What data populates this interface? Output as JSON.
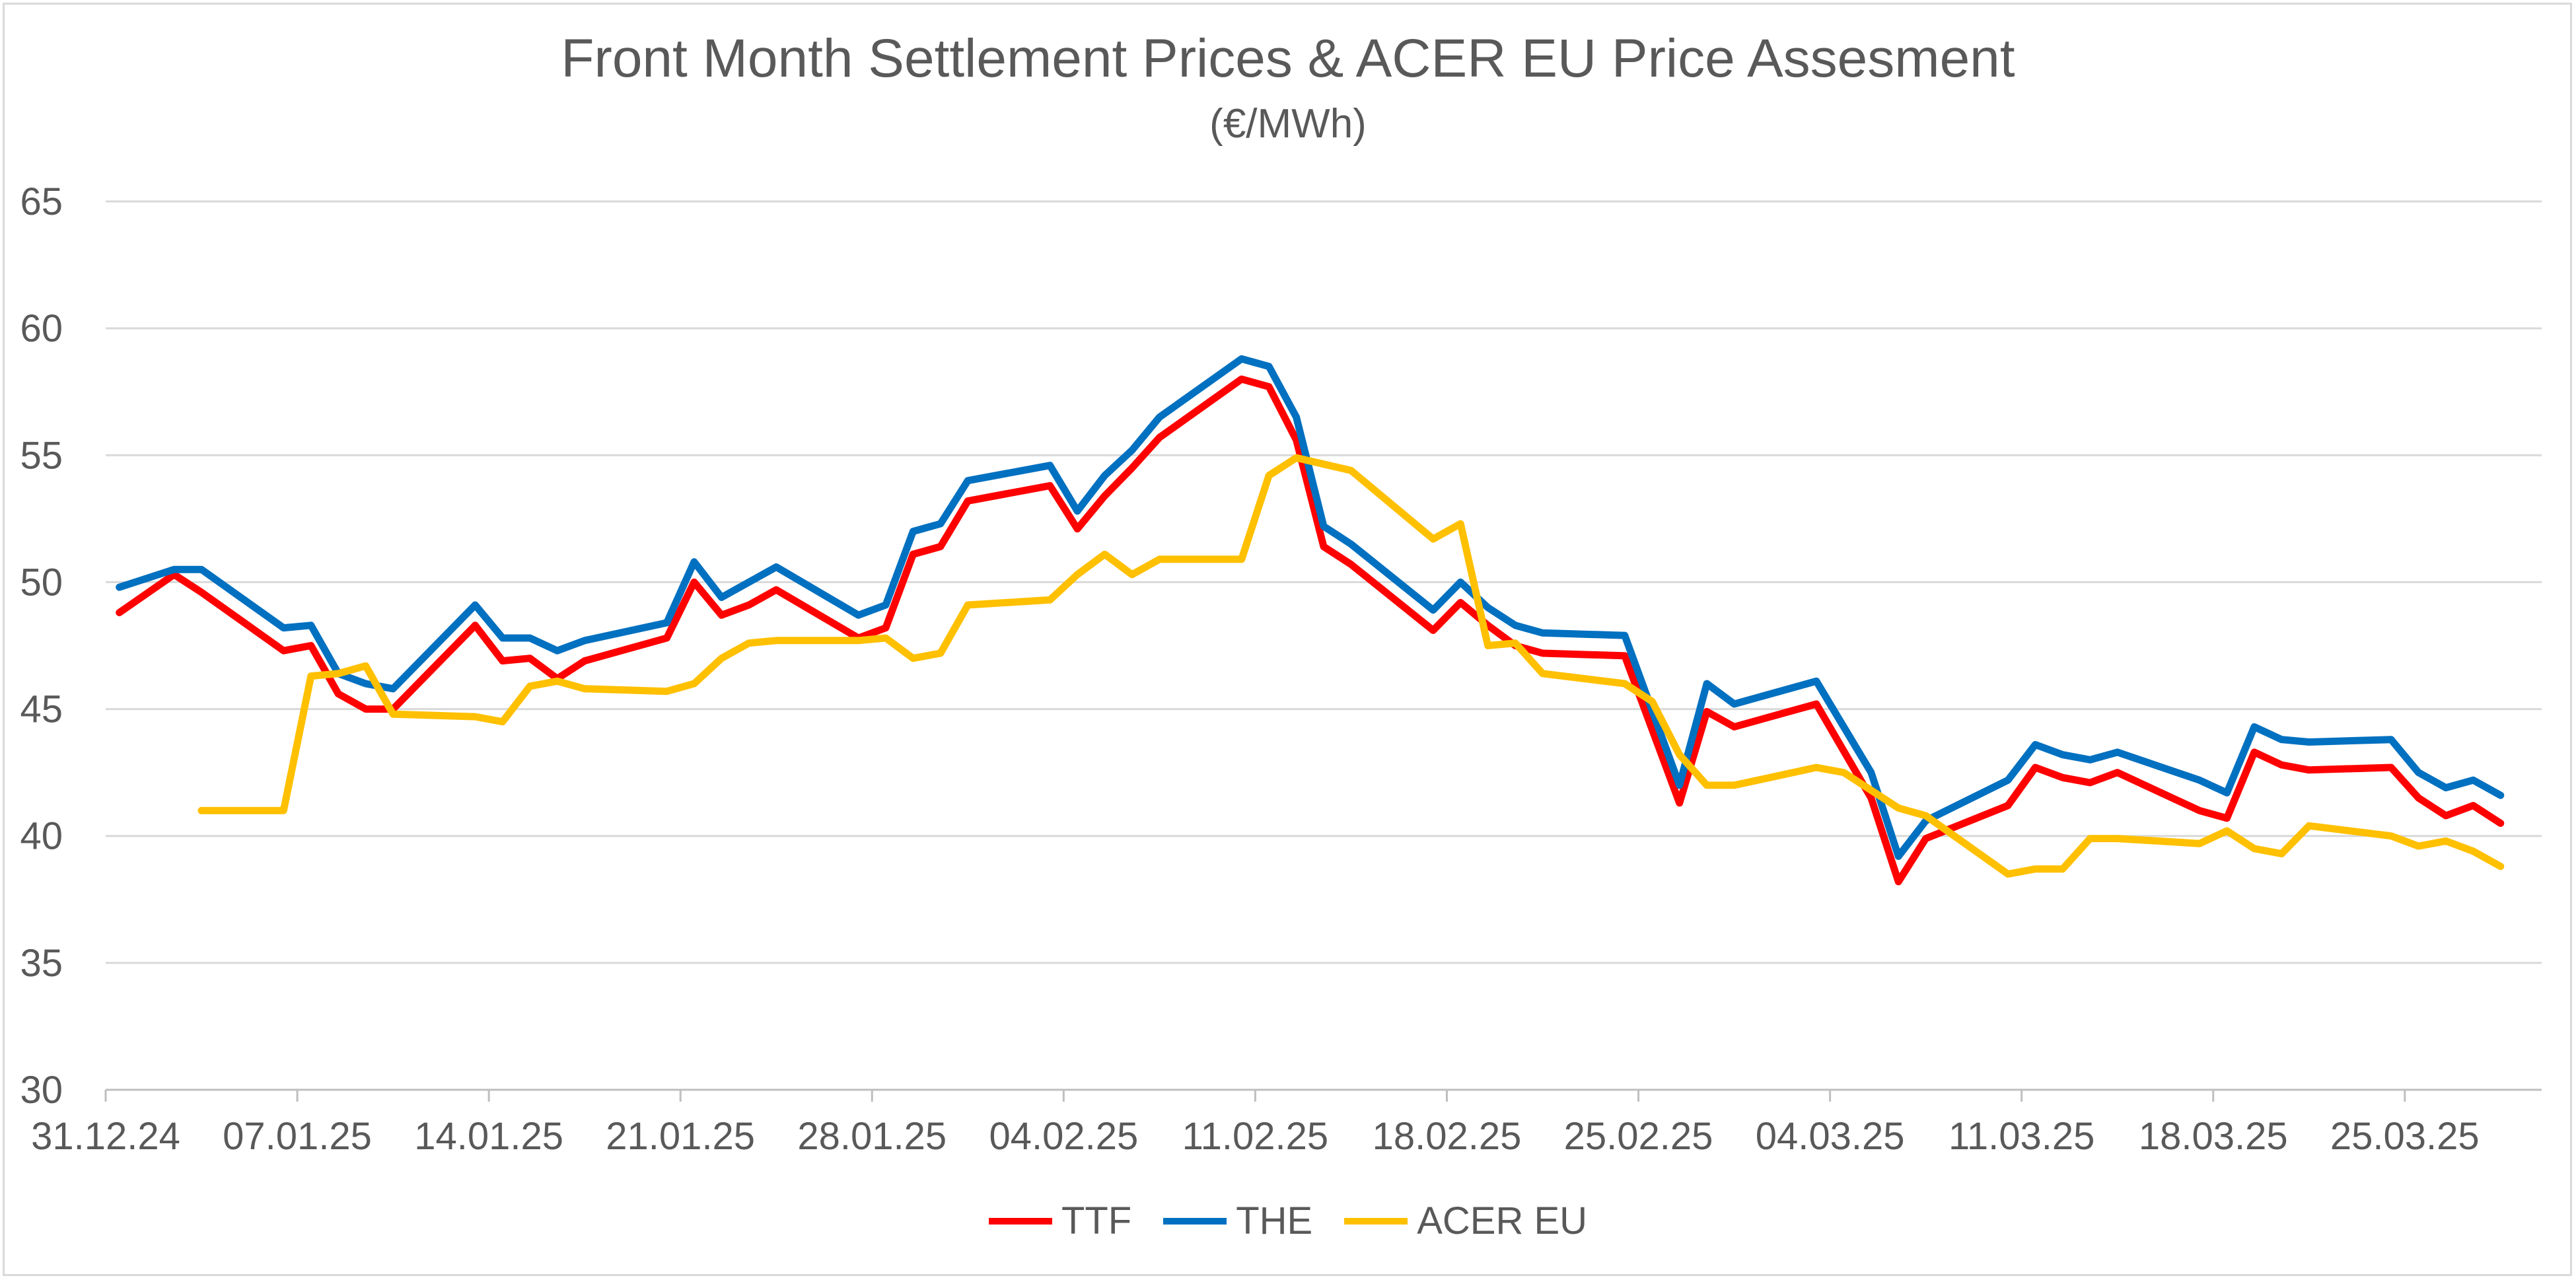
{
  "chart_data": {
    "type": "line",
    "title": "Front Month Settlement Prices & ACER EU Price Assesment",
    "subtitle": "(€/MWh)",
    "xlabel": "",
    "ylabel": "",
    "ylim": [
      30,
      65
    ],
    "yticks": [
      "30",
      "35",
      "40",
      "45",
      "50",
      "55",
      "60",
      "65"
    ],
    "xlim": [
      0,
      89
    ],
    "xticks": [
      {
        "label": "31.12.24",
        "day": 0
      },
      {
        "label": "07.01.25",
        "day": 7
      },
      {
        "label": "14.01.25",
        "day": 14
      },
      {
        "label": "21.01.25",
        "day": 21
      },
      {
        "label": "28.01.25",
        "day": 28
      },
      {
        "label": "04.02.25",
        "day": 35
      },
      {
        "label": "11.02.25",
        "day": 42
      },
      {
        "label": "18.02.25",
        "day": 49
      },
      {
        "label": "25.02.25",
        "day": 56
      },
      {
        "label": "04.03.25",
        "day": 63
      },
      {
        "label": "11.03.25",
        "day": 70
      },
      {
        "label": "18.03.25",
        "day": 77
      },
      {
        "label": "25.03.25",
        "day": 84
      }
    ],
    "series": [
      {
        "name": "TTF",
        "color": "#ff0000",
        "points": [
          [
            0.5,
            48.8
          ],
          [
            2.5,
            50.3
          ],
          [
            3.5,
            49.6
          ],
          [
            6.5,
            47.3
          ],
          [
            7.5,
            47.5
          ],
          [
            8.5,
            45.6
          ],
          [
            9.5,
            45.0
          ],
          [
            10.5,
            45.0
          ],
          [
            13.5,
            48.3
          ],
          [
            14.5,
            46.9
          ],
          [
            15.5,
            47.0
          ],
          [
            16.5,
            46.2
          ],
          [
            17.5,
            46.9
          ],
          [
            20.5,
            47.8
          ],
          [
            21.5,
            50.0
          ],
          [
            22.5,
            48.7
          ],
          [
            23.5,
            49.1
          ],
          [
            24.5,
            49.7
          ],
          [
            27.5,
            47.8
          ],
          [
            28.5,
            48.2
          ],
          [
            29.5,
            51.1
          ],
          [
            30.5,
            51.4
          ],
          [
            31.5,
            53.2
          ],
          [
            34.5,
            53.8
          ],
          [
            35.5,
            52.1
          ],
          [
            36.5,
            53.4
          ],
          [
            37.5,
            54.5
          ],
          [
            38.5,
            55.7
          ],
          [
            41.5,
            58.0
          ],
          [
            42.5,
            57.7
          ],
          [
            43.5,
            55.6
          ],
          [
            44.5,
            51.4
          ],
          [
            45.5,
            50.7
          ],
          [
            48.5,
            48.1
          ],
          [
            49.5,
            49.2
          ],
          [
            50.5,
            48.3
          ],
          [
            51.5,
            47.5
          ],
          [
            52.5,
            47.2
          ],
          [
            55.5,
            47.1
          ],
          [
            57.5,
            41.3
          ],
          [
            58.5,
            44.9
          ],
          [
            59.5,
            44.3
          ],
          [
            62.5,
            45.2
          ],
          [
            64.5,
            41.5
          ],
          [
            65.5,
            38.2
          ],
          [
            66.5,
            39.9
          ],
          [
            69.5,
            41.2
          ],
          [
            70.5,
            42.7
          ],
          [
            71.5,
            42.3
          ],
          [
            72.5,
            42.1
          ],
          [
            73.5,
            42.5
          ],
          [
            76.5,
            41.0
          ],
          [
            77.5,
            40.7
          ],
          [
            78.5,
            43.3
          ],
          [
            79.5,
            42.8
          ],
          [
            80.5,
            42.6
          ],
          [
            83.5,
            42.7
          ],
          [
            84.5,
            41.5
          ],
          [
            85.5,
            40.8
          ],
          [
            86.5,
            41.2
          ],
          [
            87.5,
            40.5
          ]
        ]
      },
      {
        "name": "THE",
        "color": "#0070c0",
        "points": [
          [
            0.5,
            49.8
          ],
          [
            2.5,
            50.5
          ],
          [
            3.5,
            50.5
          ],
          [
            6.5,
            48.2
          ],
          [
            7.5,
            48.3
          ],
          [
            8.5,
            46.4
          ],
          [
            9.5,
            46.0
          ],
          [
            10.5,
            45.8
          ],
          [
            13.5,
            49.1
          ],
          [
            14.5,
            47.8
          ],
          [
            15.5,
            47.8
          ],
          [
            16.5,
            47.3
          ],
          [
            17.5,
            47.7
          ],
          [
            20.5,
            48.4
          ],
          [
            21.5,
            50.8
          ],
          [
            22.5,
            49.4
          ],
          [
            23.5,
            50.0
          ],
          [
            24.5,
            50.6
          ],
          [
            27.5,
            48.7
          ],
          [
            28.5,
            49.1
          ],
          [
            29.5,
            52.0
          ],
          [
            30.5,
            52.3
          ],
          [
            31.5,
            54.0
          ],
          [
            34.5,
            54.6
          ],
          [
            35.5,
            52.8
          ],
          [
            36.5,
            54.2
          ],
          [
            37.5,
            55.2
          ],
          [
            38.5,
            56.5
          ],
          [
            41.5,
            58.8
          ],
          [
            42.5,
            58.5
          ],
          [
            43.5,
            56.5
          ],
          [
            44.5,
            52.2
          ],
          [
            45.5,
            51.5
          ],
          [
            48.5,
            48.9
          ],
          [
            49.5,
            50.0
          ],
          [
            50.5,
            49.0
          ],
          [
            51.5,
            48.3
          ],
          [
            52.5,
            48.0
          ],
          [
            55.5,
            47.9
          ],
          [
            57.5,
            42.0
          ],
          [
            58.5,
            46.0
          ],
          [
            59.5,
            45.2
          ],
          [
            62.5,
            46.1
          ],
          [
            64.5,
            42.5
          ],
          [
            65.5,
            39.2
          ],
          [
            66.5,
            40.6
          ],
          [
            69.5,
            42.2
          ],
          [
            70.5,
            43.6
          ],
          [
            71.5,
            43.2
          ],
          [
            72.5,
            43.0
          ],
          [
            73.5,
            43.3
          ],
          [
            76.5,
            42.2
          ],
          [
            77.5,
            41.7
          ],
          [
            78.5,
            44.3
          ],
          [
            79.5,
            43.8
          ],
          [
            80.5,
            43.7
          ],
          [
            83.5,
            43.8
          ],
          [
            84.5,
            42.5
          ],
          [
            85.5,
            41.9
          ],
          [
            86.5,
            42.2
          ],
          [
            87.5,
            41.6
          ]
        ]
      },
      {
        "name": "ACER EU",
        "color": "#ffc000",
        "points": [
          [
            3.5,
            41.0
          ],
          [
            6.5,
            41.0
          ],
          [
            7.5,
            46.3
          ],
          [
            8.5,
            46.4
          ],
          [
            9.5,
            46.7
          ],
          [
            10.5,
            44.8
          ],
          [
            13.5,
            44.7
          ],
          [
            14.5,
            44.5
          ],
          [
            15.5,
            45.9
          ],
          [
            16.5,
            46.1
          ],
          [
            17.5,
            45.8
          ],
          [
            20.5,
            45.7
          ],
          [
            21.5,
            46.0
          ],
          [
            22.5,
            47.0
          ],
          [
            23.5,
            47.6
          ],
          [
            24.5,
            47.7
          ],
          [
            27.5,
            47.7
          ],
          [
            28.5,
            47.8
          ],
          [
            29.5,
            47.0
          ],
          [
            30.5,
            47.2
          ],
          [
            31.5,
            49.1
          ],
          [
            34.5,
            49.3
          ],
          [
            35.5,
            50.3
          ],
          [
            36.5,
            51.1
          ],
          [
            37.5,
            50.3
          ],
          [
            38.5,
            50.9
          ],
          [
            41.5,
            50.9
          ],
          [
            42.5,
            54.2
          ],
          [
            43.5,
            54.9
          ],
          [
            45.5,
            54.4
          ],
          [
            48.5,
            51.7
          ],
          [
            49.5,
            52.3
          ],
          [
            50.5,
            47.5
          ],
          [
            51.5,
            47.6
          ],
          [
            52.5,
            46.4
          ],
          [
            55.5,
            46.0
          ],
          [
            56.5,
            45.3
          ],
          [
            57.5,
            43.2
          ],
          [
            58.5,
            42.0
          ],
          [
            59.5,
            42.0
          ],
          [
            62.5,
            42.7
          ],
          [
            63.5,
            42.5
          ],
          [
            64.5,
            41.8
          ],
          [
            65.5,
            41.1
          ],
          [
            66.5,
            40.8
          ],
          [
            69.5,
            38.5
          ],
          [
            70.5,
            38.7
          ],
          [
            71.5,
            38.7
          ],
          [
            72.5,
            39.9
          ],
          [
            73.5,
            39.9
          ],
          [
            76.5,
            39.7
          ],
          [
            77.5,
            40.2
          ],
          [
            78.5,
            39.5
          ],
          [
            79.5,
            39.3
          ],
          [
            80.5,
            40.4
          ],
          [
            83.5,
            40.0
          ],
          [
            84.5,
            39.6
          ],
          [
            85.5,
            39.8
          ],
          [
            86.5,
            39.4
          ],
          [
            87.5,
            38.8
          ]
        ]
      }
    ],
    "legend": [
      "TTF",
      "THE",
      "ACER EU"
    ],
    "legend_position": "bottom",
    "grid": true
  }
}
